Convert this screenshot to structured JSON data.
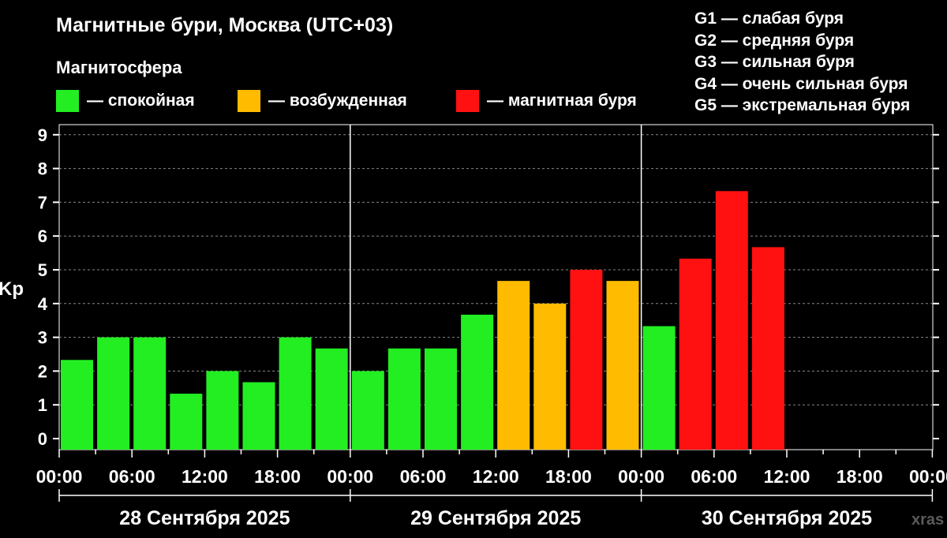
{
  "title": "Магнитные бури, Москва (UTC+03)",
  "subtitle": "Магнитосфера",
  "legend": [
    {
      "color": "#22ee22",
      "label": "— спокойная"
    },
    {
      "color": "#ffbb00",
      "label": "— возбужденная"
    },
    {
      "color": "#ff1111",
      "label": "— магнитная буря"
    }
  ],
  "g_scale": [
    "G1 — слабая буря",
    "G2 — средняя буря",
    "G3 — сильная буря",
    "G4 — очень сильная буря",
    "G5 — экстремальная буря"
  ],
  "watermark": "xras",
  "chart_data": {
    "type": "bar",
    "ylabel": "Kp",
    "ylim": [
      0,
      9
    ],
    "y_ticks": [
      "0",
      "1",
      "2",
      "3",
      "4",
      "5",
      "6",
      "7",
      "8",
      "9"
    ],
    "x_ticks": [
      "00:00",
      "06:00",
      "12:00",
      "18:00",
      "00:00",
      "06:00",
      "12:00",
      "18:00",
      "00:00",
      "06:00",
      "12:00",
      "18:00",
      "00:00"
    ],
    "days": [
      "28 Сентября 2025",
      "29 Сентября 2025",
      "30 Сентября 2025"
    ],
    "grid": true,
    "colors": {
      "calm": "#22ee22",
      "active": "#ffbb00",
      "storm": "#ff1111"
    },
    "bars": [
      {
        "start": "28 Сентября 2025 00:00",
        "kp": 2.33,
        "level": "calm"
      },
      {
        "start": "28 Сентября 2025 03:00",
        "kp": 3.0,
        "level": "calm"
      },
      {
        "start": "28 Сентября 2025 06:00",
        "kp": 3.0,
        "level": "calm"
      },
      {
        "start": "28 Сентября 2025 09:00",
        "kp": 1.33,
        "level": "calm"
      },
      {
        "start": "28 Сентября 2025 12:00",
        "kp": 2.0,
        "level": "calm"
      },
      {
        "start": "28 Сентября 2025 15:00",
        "kp": 1.67,
        "level": "calm"
      },
      {
        "start": "28 Сентября 2025 18:00",
        "kp": 3.0,
        "level": "calm"
      },
      {
        "start": "28 Сентября 2025 21:00",
        "kp": 2.67,
        "level": "calm"
      },
      {
        "start": "29 Сентября 2025 00:00",
        "kp": 2.0,
        "level": "calm"
      },
      {
        "start": "29 Сентября 2025 03:00",
        "kp": 2.67,
        "level": "calm"
      },
      {
        "start": "29 Сентября 2025 06:00",
        "kp": 2.67,
        "level": "calm"
      },
      {
        "start": "29 Сентября 2025 09:00",
        "kp": 3.67,
        "level": "calm"
      },
      {
        "start": "29 Сентября 2025 12:00",
        "kp": 4.67,
        "level": "active"
      },
      {
        "start": "29 Сентября 2025 15:00",
        "kp": 4.0,
        "level": "active"
      },
      {
        "start": "29 Сентября 2025 18:00",
        "kp": 5.0,
        "level": "storm"
      },
      {
        "start": "29 Сентября 2025 21:00",
        "kp": 4.67,
        "level": "active"
      },
      {
        "start": "30 Сентября 2025 00:00",
        "kp": 3.33,
        "level": "calm"
      },
      {
        "start": "30 Сентября 2025 03:00",
        "kp": 5.33,
        "level": "storm"
      },
      {
        "start": "30 Сентября 2025 06:00",
        "kp": 7.33,
        "level": "storm"
      },
      {
        "start": "30 Сентября 2025 09:00",
        "kp": 5.67,
        "level": "storm"
      }
    ]
  }
}
